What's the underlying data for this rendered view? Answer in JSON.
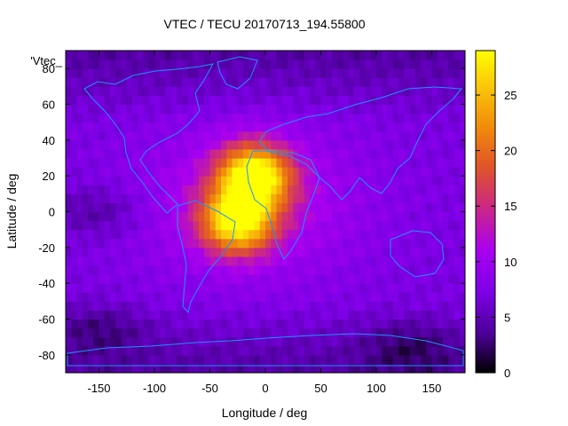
{
  "chart_data": {
    "type": "heatmap",
    "title": "VTEC / TECU 20170713_194.55800",
    "xlabel": "Longitude / deg",
    "ylabel": "Latitude / deg",
    "legend_label": "'Vtec_",
    "xlim": [
      -180,
      180
    ],
    "ylim": [
      -90,
      90
    ],
    "x_ticks": [
      -150,
      -100,
      -50,
      0,
      50,
      100,
      150
    ],
    "y_ticks": [
      -80,
      -60,
      -40,
      -20,
      0,
      20,
      40,
      60,
      80
    ],
    "colorbar": {
      "range": [
        0,
        29
      ],
      "ticks": [
        0,
        5,
        10,
        15,
        20,
        25
      ],
      "palette": [
        "#000000",
        "#4b0096",
        "#7d00e6",
        "#a900f0",
        "#cd2a80",
        "#e05528",
        "#f08a0a",
        "#fac20a",
        "#ffff00"
      ]
    },
    "grid": false,
    "cell_size_deg": 5,
    "features": {
      "background_level": 7,
      "peaks": [
        {
          "lon": -10,
          "lat": 20,
          "value": 29
        },
        {
          "lon": -25,
          "lat": -5,
          "value": 27
        }
      ],
      "low_regions": [
        {
          "lon": 130,
          "lat": -75,
          "value": 1
        },
        {
          "lon": -150,
          "lat": -65,
          "value": 2
        },
        {
          "lon": -150,
          "lat": 0,
          "value": 4
        }
      ]
    },
    "overlay": "coastlines"
  }
}
